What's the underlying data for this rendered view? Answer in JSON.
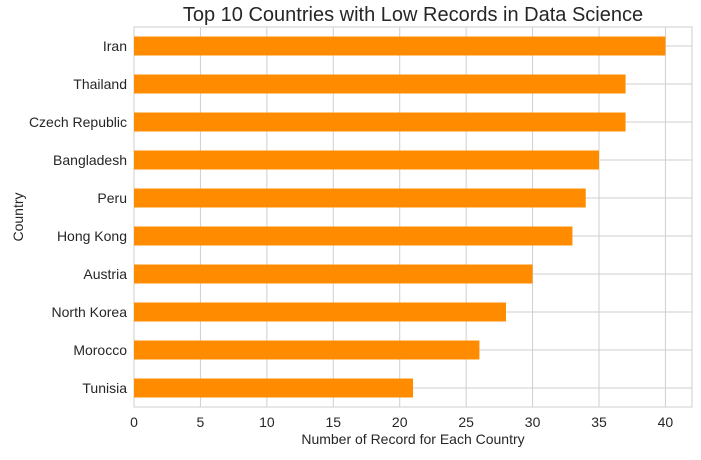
{
  "chart_data": {
    "type": "bar",
    "orientation": "horizontal",
    "title": "Top 10 Countries with Low Records in Data Science",
    "xlabel": "Number of Record for Each Country",
    "ylabel": "Country",
    "categories": [
      "Iran",
      "Thailand",
      "Czech Republic",
      "Bangladesh",
      "Peru",
      "Hong Kong",
      "Austria",
      "North Korea",
      "Morocco",
      "Tunisia"
    ],
    "values": [
      40,
      37,
      37,
      35,
      34,
      33,
      30,
      28,
      26,
      21
    ],
    "xlim": [
      0,
      42
    ],
    "xticks": [
      "0",
      "5",
      "10",
      "15",
      "20",
      "25",
      "30",
      "35",
      "40"
    ],
    "grid": true,
    "bar_color": "#ff8c00"
  }
}
